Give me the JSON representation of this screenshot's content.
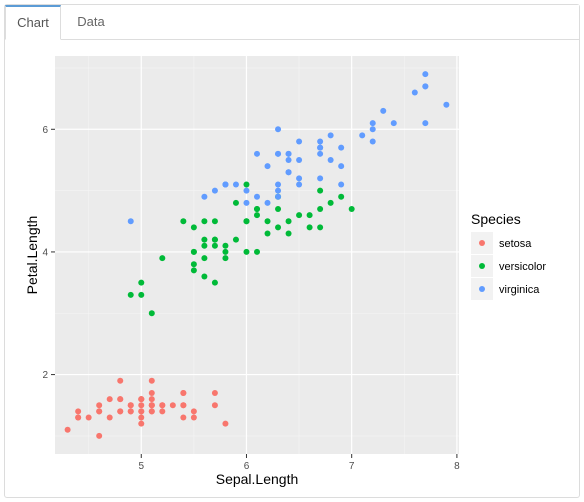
{
  "tabs": [
    {
      "label": "Chart",
      "active": true
    },
    {
      "label": "Data",
      "active": false
    }
  ],
  "chart_data": {
    "type": "scatter",
    "title": "",
    "xlabel": "Sepal.Length",
    "ylabel": "Petal.Length",
    "xlim": [
      4.18,
      8.02
    ],
    "ylim": [
      0.705,
      7.195
    ],
    "xticks": [
      5,
      6,
      7,
      8
    ],
    "yticks": [
      2,
      4,
      6
    ],
    "grid": true,
    "legend": {
      "title": "Species",
      "position": "right"
    },
    "series": [
      {
        "name": "setosa",
        "color": "#F8766D",
        "points": [
          [
            5.1,
            1.4
          ],
          [
            4.9,
            1.4
          ],
          [
            4.7,
            1.3
          ],
          [
            4.6,
            1.5
          ],
          [
            5.0,
            1.4
          ],
          [
            5.4,
            1.7
          ],
          [
            4.6,
            1.4
          ],
          [
            5.0,
            1.5
          ],
          [
            4.4,
            1.4
          ],
          [
            4.9,
            1.5
          ],
          [
            5.4,
            1.5
          ],
          [
            4.8,
            1.6
          ],
          [
            4.8,
            1.4
          ],
          [
            4.3,
            1.1
          ],
          [
            5.8,
            1.2
          ],
          [
            5.7,
            1.5
          ],
          [
            5.4,
            1.3
          ],
          [
            5.1,
            1.4
          ],
          [
            5.7,
            1.7
          ],
          [
            5.1,
            1.5
          ],
          [
            5.4,
            1.7
          ],
          [
            5.1,
            1.5
          ],
          [
            4.6,
            1.0
          ],
          [
            5.1,
            1.7
          ],
          [
            4.8,
            1.9
          ],
          [
            5.0,
            1.6
          ],
          [
            5.0,
            1.6
          ],
          [
            5.2,
            1.5
          ],
          [
            5.2,
            1.4
          ],
          [
            4.7,
            1.6
          ],
          [
            4.8,
            1.6
          ],
          [
            5.4,
            1.5
          ],
          [
            5.2,
            1.5
          ],
          [
            5.5,
            1.4
          ],
          [
            4.9,
            1.5
          ],
          [
            5.0,
            1.2
          ],
          [
            5.5,
            1.3
          ],
          [
            4.9,
            1.4
          ],
          [
            4.4,
            1.3
          ],
          [
            5.1,
            1.5
          ],
          [
            5.0,
            1.3
          ],
          [
            4.5,
            1.3
          ],
          [
            4.4,
            1.3
          ],
          [
            5.0,
            1.6
          ],
          [
            5.1,
            1.9
          ],
          [
            4.8,
            1.4
          ],
          [
            5.1,
            1.6
          ],
          [
            4.6,
            1.4
          ],
          [
            5.3,
            1.5
          ],
          [
            5.0,
            1.4
          ]
        ]
      },
      {
        "name": "versicolor",
        "color": "#00BA38",
        "points": [
          [
            7.0,
            4.7
          ],
          [
            6.4,
            4.5
          ],
          [
            6.9,
            4.9
          ],
          [
            5.5,
            4.0
          ],
          [
            6.5,
            4.6
          ],
          [
            5.7,
            4.5
          ],
          [
            6.3,
            4.7
          ],
          [
            4.9,
            3.3
          ],
          [
            6.6,
            4.6
          ],
          [
            5.2,
            3.9
          ],
          [
            5.0,
            3.5
          ],
          [
            5.9,
            4.2
          ],
          [
            6.0,
            4.0
          ],
          [
            6.1,
            4.7
          ],
          [
            5.6,
            3.6
          ],
          [
            6.7,
            4.4
          ],
          [
            5.6,
            4.5
          ],
          [
            5.8,
            4.1
          ],
          [
            6.2,
            4.5
          ],
          [
            5.6,
            3.9
          ],
          [
            5.9,
            4.8
          ],
          [
            6.1,
            4.0
          ],
          [
            6.3,
            4.9
          ],
          [
            6.1,
            4.7
          ],
          [
            6.4,
            4.3
          ],
          [
            6.6,
            4.4
          ],
          [
            6.8,
            4.8
          ],
          [
            6.7,
            5.0
          ],
          [
            6.0,
            4.5
          ],
          [
            5.7,
            3.5
          ],
          [
            5.5,
            3.8
          ],
          [
            5.5,
            3.7
          ],
          [
            5.8,
            3.9
          ],
          [
            6.0,
            5.1
          ],
          [
            5.4,
            4.5
          ],
          [
            6.0,
            4.5
          ],
          [
            6.7,
            4.7
          ],
          [
            6.3,
            4.4
          ],
          [
            5.6,
            4.1
          ],
          [
            5.5,
            4.0
          ],
          [
            5.5,
            4.4
          ],
          [
            6.1,
            4.6
          ],
          [
            5.8,
            4.0
          ],
          [
            5.0,
            3.3
          ],
          [
            5.6,
            4.2
          ],
          [
            5.7,
            4.2
          ],
          [
            5.7,
            4.2
          ],
          [
            6.2,
            4.3
          ],
          [
            5.1,
            3.0
          ],
          [
            5.7,
            4.1
          ]
        ]
      },
      {
        "name": "virginica",
        "color": "#619CFF",
        "points": [
          [
            6.3,
            6.0
          ],
          [
            5.8,
            5.1
          ],
          [
            7.1,
            5.9
          ],
          [
            6.3,
            5.6
          ],
          [
            6.5,
            5.8
          ],
          [
            7.6,
            6.6
          ],
          [
            4.9,
            4.5
          ],
          [
            7.3,
            6.3
          ],
          [
            6.7,
            5.8
          ],
          [
            7.2,
            6.1
          ],
          [
            6.5,
            5.1
          ],
          [
            6.4,
            5.3
          ],
          [
            6.8,
            5.5
          ],
          [
            5.7,
            5.0
          ],
          [
            5.8,
            5.1
          ],
          [
            6.4,
            5.3
          ],
          [
            6.5,
            5.5
          ],
          [
            7.7,
            6.7
          ],
          [
            7.7,
            6.9
          ],
          [
            6.0,
            5.0
          ],
          [
            6.9,
            5.7
          ],
          [
            5.6,
            4.9
          ],
          [
            7.7,
            6.7
          ],
          [
            6.3,
            4.9
          ],
          [
            6.7,
            5.7
          ],
          [
            7.2,
            6.0
          ],
          [
            6.2,
            4.8
          ],
          [
            6.1,
            4.9
          ],
          [
            6.4,
            5.6
          ],
          [
            7.2,
            5.8
          ],
          [
            7.4,
            6.1
          ],
          [
            7.9,
            6.4
          ],
          [
            6.4,
            5.6
          ],
          [
            6.3,
            5.1
          ],
          [
            6.1,
            5.6
          ],
          [
            7.7,
            6.1
          ],
          [
            6.3,
            5.6
          ],
          [
            6.4,
            5.5
          ],
          [
            6.0,
            4.8
          ],
          [
            6.9,
            5.4
          ],
          [
            6.7,
            5.6
          ],
          [
            6.9,
            5.1
          ],
          [
            5.8,
            5.1
          ],
          [
            6.8,
            5.9
          ],
          [
            6.7,
            5.7
          ],
          [
            6.7,
            5.2
          ],
          [
            6.3,
            5.0
          ],
          [
            6.5,
            5.2
          ],
          [
            6.2,
            5.4
          ],
          [
            5.9,
            5.1
          ]
        ]
      }
    ]
  }
}
